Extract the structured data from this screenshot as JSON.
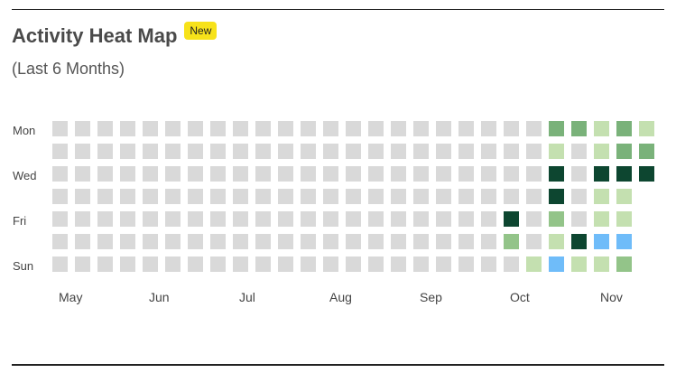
{
  "header": {
    "title": "Activity Heat Map",
    "badge": "New",
    "subtitle": "(Last 6 Months)"
  },
  "heatmap": {
    "day_labels": [
      "Mon",
      "",
      "Wed",
      "",
      "Fri",
      "",
      "Sun"
    ],
    "month_labels": [
      "May",
      "Jun",
      "Jul",
      "Aug",
      "Sep",
      "Oct",
      "Nov"
    ],
    "colors": {
      "0": "#d9d9d9",
      "1": "#c4e0b0",
      "2": "#93c489",
      "3": "#7ab27a",
      "4": "#0d4630",
      "5": "#6fbcf9",
      "none": "transparent"
    },
    "cells": [
      [
        0,
        0,
        0,
        0,
        0,
        0,
        0,
        0,
        0,
        0,
        0,
        0,
        0,
        0,
        0,
        0,
        0,
        0,
        0,
        0,
        0,
        0,
        3,
        3,
        1,
        3,
        1
      ],
      [
        0,
        0,
        0,
        0,
        0,
        0,
        0,
        0,
        0,
        0,
        0,
        0,
        0,
        0,
        0,
        0,
        0,
        0,
        0,
        0,
        0,
        0,
        1,
        0,
        1,
        3,
        3
      ],
      [
        0,
        0,
        0,
        0,
        0,
        0,
        0,
        0,
        0,
        0,
        0,
        0,
        0,
        0,
        0,
        0,
        0,
        0,
        0,
        0,
        0,
        0,
        4,
        0,
        4,
        4,
        4
      ],
      [
        0,
        0,
        0,
        0,
        0,
        0,
        0,
        0,
        0,
        0,
        0,
        0,
        0,
        0,
        0,
        0,
        0,
        0,
        0,
        0,
        0,
        0,
        4,
        0,
        1,
        1,
        "none"
      ],
      [
        0,
        0,
        0,
        0,
        0,
        0,
        0,
        0,
        0,
        0,
        0,
        0,
        0,
        0,
        0,
        0,
        0,
        0,
        0,
        0,
        4,
        0,
        2,
        0,
        1,
        1,
        "none"
      ],
      [
        0,
        0,
        0,
        0,
        0,
        0,
        0,
        0,
        0,
        0,
        0,
        0,
        0,
        0,
        0,
        0,
        0,
        0,
        0,
        0,
        2,
        0,
        1,
        4,
        5,
        5,
        "none"
      ],
      [
        0,
        0,
        0,
        0,
        0,
        0,
        0,
        0,
        0,
        0,
        0,
        0,
        0,
        0,
        0,
        0,
        0,
        0,
        0,
        0,
        0,
        1,
        5,
        1,
        1,
        2,
        "none"
      ]
    ]
  }
}
